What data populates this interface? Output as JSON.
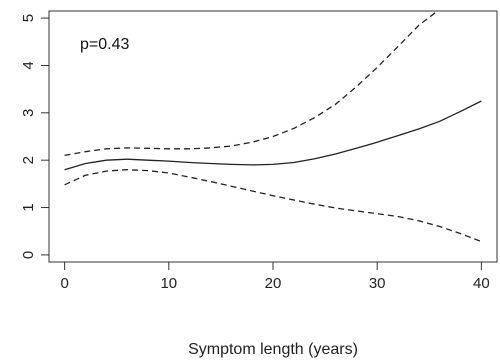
{
  "chart_data": {
    "type": "line",
    "title": "",
    "xlabel": "Symptom length (years)",
    "ylabel": "",
    "annotation": "p=0.43",
    "xlim": [
      -1.5,
      41.5
    ],
    "ylim": [
      -0.15,
      5.15
    ],
    "x_ticks": [
      0,
      10,
      20,
      30,
      40
    ],
    "y_ticks": [
      0,
      1,
      2,
      3,
      4,
      5
    ],
    "grid": false,
    "series": [
      {
        "line": "solid",
        "x": [
          0,
          2,
          4,
          6,
          8,
          10,
          12,
          14,
          16,
          18,
          20,
          22,
          24,
          26,
          28,
          30,
          32,
          34,
          36,
          38,
          40
        ],
        "y": [
          1.8,
          1.93,
          2.0,
          2.02,
          2.0,
          1.98,
          1.95,
          1.93,
          1.91,
          1.9,
          1.91,
          1.95,
          2.03,
          2.13,
          2.25,
          2.38,
          2.52,
          2.66,
          2.82,
          3.03,
          3.25
        ]
      },
      {
        "line": "dashed",
        "x": [
          0,
          2,
          4,
          6,
          8,
          10,
          12,
          14,
          16,
          18,
          20,
          22,
          24,
          26,
          28,
          30,
          32,
          34,
          35.8
        ],
        "y": [
          2.1,
          2.18,
          2.24,
          2.26,
          2.25,
          2.24,
          2.24,
          2.26,
          2.3,
          2.38,
          2.5,
          2.67,
          2.9,
          3.18,
          3.55,
          3.96,
          4.4,
          4.85,
          5.15
        ]
      },
      {
        "line": "dashed",
        "x": [
          0,
          2,
          4,
          6,
          8,
          10,
          12,
          14,
          16,
          18,
          20,
          22,
          24,
          26,
          28,
          30,
          32,
          34,
          36,
          38,
          40
        ],
        "y": [
          1.48,
          1.68,
          1.77,
          1.8,
          1.78,
          1.73,
          1.64,
          1.55,
          1.45,
          1.35,
          1.25,
          1.16,
          1.07,
          0.99,
          0.93,
          0.87,
          0.81,
          0.72,
          0.6,
          0.45,
          0.28
        ]
      }
    ]
  }
}
